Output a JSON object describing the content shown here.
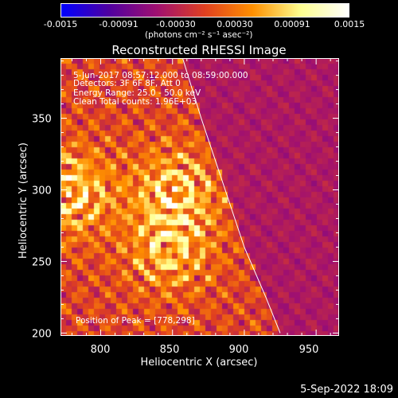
{
  "chart_data": {
    "type": "heatmap",
    "title": "Reconstructed RHESSI Image",
    "xlabel": "Heliocentric X (arcsec)",
    "ylabel": "Heliocentric Y (arcsec)",
    "xlim": [
      772,
      966
    ],
    "ylim": [
      198,
      392
    ],
    "x_ticks": [
      800,
      850,
      900,
      950
    ],
    "y_ticks": [
      200,
      250,
      300,
      350
    ],
    "x_tick_labels": [
      "800",
      "850",
      "900",
      "950"
    ],
    "y_tick_labels": [
      "200",
      "250",
      "300",
      "350"
    ],
    "colorbar": {
      "min": -0.0015,
      "max": 0.0015,
      "tick_labels": [
        "-0.0015",
        "-0.00091",
        "-0.00030",
        "0.00030",
        "0.00091",
        "0.0015"
      ],
      "tick_values": [
        -0.0015,
        -0.00091,
        -0.0003,
        0.0003,
        0.00091,
        0.0015
      ],
      "unit": "(photons cm⁻² s⁻¹ asec⁻²)",
      "colormap": [
        "#0000ff",
        "#5000a0",
        "#a01070",
        "#e04020",
        "#ff9000",
        "#ffff90",
        "#ffffff"
      ]
    },
    "annotations": {
      "time_range": "5-Jun-2017 08:57:12.000 to 08:59:00.000",
      "detectors": "Detectors: 3F 6F 8F, Att 0",
      "energy_range": "Energy Range: 25.0 - 50.0 keV",
      "method": "Clean     Total counts: 1.96E+03",
      "peak": "Position of Peak = [778,298]"
    },
    "limb_curve": {
      "x": [
        857,
        870,
        885,
        900,
        915,
        925
      ],
      "y": [
        392,
        350,
        305,
        260,
        225,
        200
      ]
    },
    "sources": [
      {
        "x": 852,
        "y": 300,
        "peak": 0.0013
      },
      {
        "x": 848,
        "y": 258,
        "peak": 0.0012
      },
      {
        "x": 778,
        "y": 298,
        "peak": 0.0015
      }
    ]
  },
  "footer": {
    "date": "5-Sep-2022 18:09"
  }
}
